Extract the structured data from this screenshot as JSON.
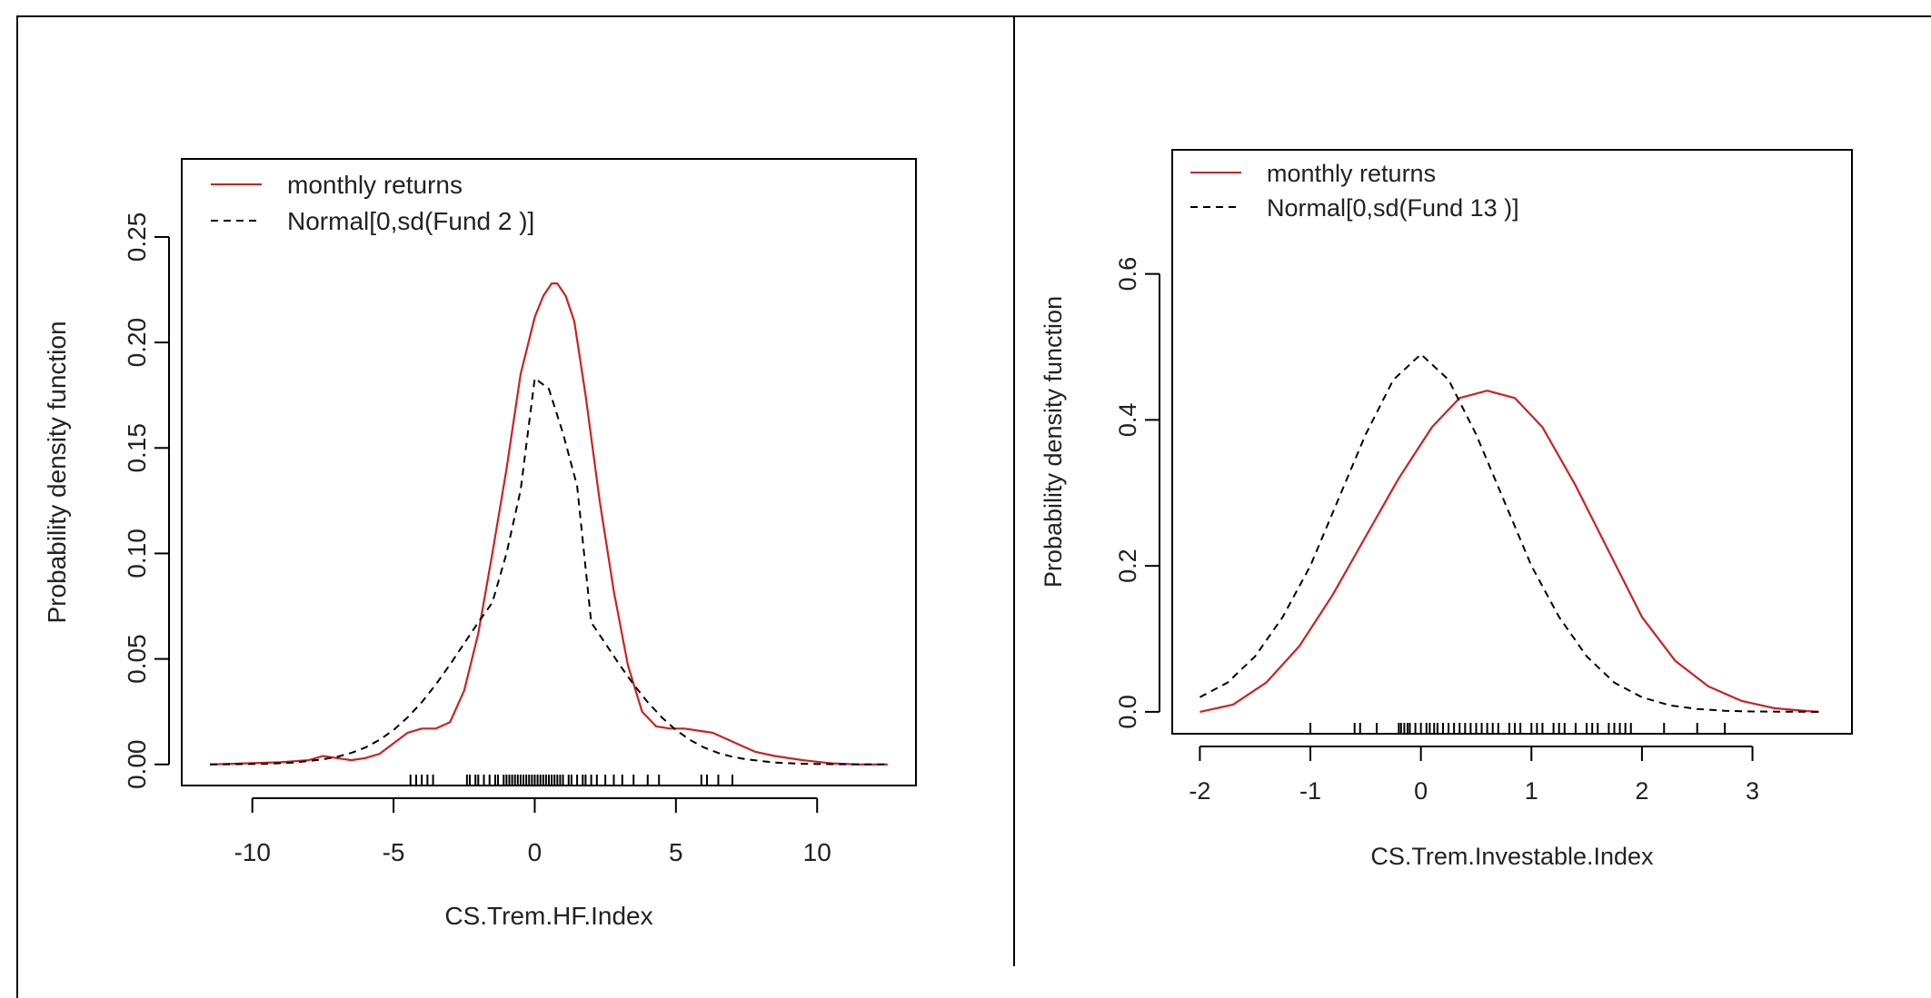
{
  "chart_data": [
    {
      "type": "line",
      "xlabel": "CS.Trem.HF.Index",
      "ylabel": "Probability density function",
      "xlim": [
        -12.5,
        13.5
      ],
      "ylim": [
        -0.01,
        0.287
      ],
      "x_ticks": [
        -10,
        -5,
        0,
        5,
        10
      ],
      "x_tick_labels": [
        "-10",
        "-5",
        "0",
        "5",
        "10"
      ],
      "y_ticks": [
        0.0,
        0.05,
        0.1,
        0.15,
        0.2,
        0.25
      ],
      "y_tick_labels": [
        "0.00",
        "0.05",
        "0.10",
        "0.15",
        "0.20",
        "0.25"
      ],
      "legend": {
        "position": "top-left",
        "entries": [
          {
            "label": "monthly returns",
            "color": "#cc2222",
            "style": "solid"
          },
          {
            "label": "Normal[0,sd(Fund 2 )]",
            "color": "#000000",
            "style": "dashed"
          }
        ]
      },
      "series": [
        {
          "name": "monthly returns",
          "color": "#cc2222",
          "style": "solid",
          "x": [
            -11.5,
            -9,
            -8,
            -7.5,
            -7,
            -6.5,
            -6,
            -5.5,
            -5,
            -4.5,
            -4,
            -3.5,
            -3,
            -2.5,
            -2,
            -1.5,
            -1,
            -0.5,
            0,
            0.3,
            0.6,
            0.8,
            1.1,
            1.4,
            1.8,
            2.3,
            2.8,
            3.3,
            3.8,
            4.3,
            4.8,
            5.3,
            5.8,
            6.3,
            6.8,
            7.3,
            7.8,
            8.5,
            9.5,
            10.5,
            11.5,
            12.5
          ],
          "y": [
            0.0,
            0.001,
            0.002,
            0.004,
            0.003,
            0.002,
            0.003,
            0.005,
            0.01,
            0.015,
            0.017,
            0.017,
            0.02,
            0.035,
            0.062,
            0.1,
            0.14,
            0.185,
            0.212,
            0.222,
            0.228,
            0.228,
            0.222,
            0.21,
            0.175,
            0.125,
            0.082,
            0.047,
            0.025,
            0.018,
            0.017,
            0.017,
            0.016,
            0.015,
            0.012,
            0.009,
            0.006,
            0.004,
            0.002,
            0.0005,
            0.0,
            0.0
          ]
        },
        {
          "name": "Normal[0,sd(Fund 2 )]",
          "color": "#000000",
          "style": "dashed",
          "x": [
            -11.5,
            -10.5,
            -9.5,
            -8.5,
            -7.5,
            -7,
            -6.5,
            -6,
            -5.5,
            -5,
            -4.5,
            -4,
            -3.5,
            -3,
            -2.5,
            -2,
            -1.5,
            -1,
            -0.5,
            0,
            0.5,
            1,
            1.5,
            2,
            2.5,
            3,
            3.5,
            4,
            4.5,
            5,
            5.5,
            6,
            6.5,
            7,
            7.5,
            8.5,
            9.5,
            10.5,
            11.5,
            12.5
          ],
          "y": [
            0.0,
            0.0001,
            0.0003,
            0.0009,
            0.0024,
            0.0036,
            0.0054,
            0.008,
            0.0116,
            0.0163,
            0.0223,
            0.0295,
            0.0379,
            0.0473,
            0.0573,
            0.0673,
            0.0767,
            0.1,
            0.13,
            0.183,
            0.178,
            0.157,
            0.132,
            0.0673,
            0.0573,
            0.0473,
            0.0379,
            0.0295,
            0.0223,
            0.0163,
            0.0116,
            0.008,
            0.0054,
            0.0036,
            0.0024,
            0.0009,
            0.0003,
            0.0001,
            0.0,
            0.0
          ]
        }
      ],
      "rug": [
        -4.4,
        -4.2,
        -4.0,
        -3.8,
        -3.6,
        -2.4,
        -2.3,
        -2.1,
        -2.0,
        -1.8,
        -1.6,
        -1.4,
        -1.3,
        -1.1,
        -1.0,
        -0.9,
        -0.8,
        -0.7,
        -0.6,
        -0.5,
        -0.4,
        -0.3,
        -0.2,
        -0.1,
        0.0,
        0.1,
        0.2,
        0.3,
        0.4,
        0.5,
        0.6,
        0.7,
        0.8,
        0.9,
        1.0,
        1.2,
        1.3,
        1.5,
        1.7,
        1.8,
        2.0,
        2.2,
        2.5,
        2.8,
        3.1,
        3.5,
        4.0,
        4.4,
        5.9,
        6.1,
        6.5,
        7.0
      ]
    },
    {
      "type": "line",
      "xlabel": "CS.Trem.Investable.Index",
      "ylabel": "Probability density function",
      "xlim": [
        -2.25,
        3.9
      ],
      "ylim": [
        -0.03,
        0.77
      ],
      "x_ticks": [
        -2,
        -1,
        0,
        1,
        2,
        3
      ],
      "x_tick_labels": [
        "-2",
        "-1",
        "0",
        "1",
        "2",
        "3"
      ],
      "y_ticks": [
        0.0,
        0.2,
        0.4,
        0.6
      ],
      "y_tick_labels": [
        "0.0",
        "0.2",
        "0.4",
        "0.6"
      ],
      "legend": {
        "position": "top-left",
        "entries": [
          {
            "label": "monthly returns",
            "color": "#cc2222",
            "style": "solid"
          },
          {
            "label": "Normal[0,sd(Fund 13 )]",
            "color": "#000000",
            "style": "dashed"
          }
        ]
      },
      "series": [
        {
          "name": "monthly returns",
          "color": "#cc2222",
          "style": "solid",
          "x": [
            -2.0,
            -1.7,
            -1.4,
            -1.1,
            -0.8,
            -0.5,
            -0.2,
            0.1,
            0.35,
            0.6,
            0.85,
            1.1,
            1.4,
            1.7,
            2.0,
            2.3,
            2.6,
            2.9,
            3.2,
            3.5,
            3.6
          ],
          "y": [
            0.0,
            0.01,
            0.04,
            0.09,
            0.16,
            0.24,
            0.32,
            0.39,
            0.43,
            0.44,
            0.43,
            0.39,
            0.31,
            0.22,
            0.13,
            0.07,
            0.035,
            0.015,
            0.005,
            0.001,
            0.0
          ]
        },
        {
          "name": "Normal[0,sd(Fund 13 )]",
          "color": "#000000",
          "style": "dashed",
          "x": [
            -2.0,
            -1.75,
            -1.5,
            -1.25,
            -1.0,
            -0.75,
            -0.5,
            -0.25,
            0.0,
            0.25,
            0.5,
            0.75,
            1.0,
            1.25,
            1.5,
            1.75,
            2.0,
            2.25,
            2.5,
            2.75,
            3.0,
            3.25,
            3.5,
            3.6
          ],
          "y": [
            0.02,
            0.04,
            0.076,
            0.13,
            0.2,
            0.29,
            0.38,
            0.455,
            0.49,
            0.455,
            0.38,
            0.29,
            0.2,
            0.13,
            0.076,
            0.04,
            0.02,
            0.009,
            0.004,
            0.0015,
            0.0005,
            0.0002,
            0.0001,
            0.0
          ]
        }
      ],
      "rug": [
        -1.0,
        -0.6,
        -0.55,
        -0.4,
        -0.2,
        -0.18,
        -0.15,
        -0.12,
        -0.1,
        -0.05,
        0.0,
        0.05,
        0.08,
        0.12,
        0.15,
        0.2,
        0.25,
        0.3,
        0.35,
        0.4,
        0.45,
        0.5,
        0.55,
        0.6,
        0.65,
        0.7,
        0.8,
        0.85,
        0.9,
        1.0,
        1.05,
        1.1,
        1.2,
        1.25,
        1.3,
        1.4,
        1.5,
        1.55,
        1.6,
        1.7,
        1.75,
        1.8,
        1.85,
        1.9,
        2.2,
        2.5,
        2.75
      ]
    }
  ]
}
